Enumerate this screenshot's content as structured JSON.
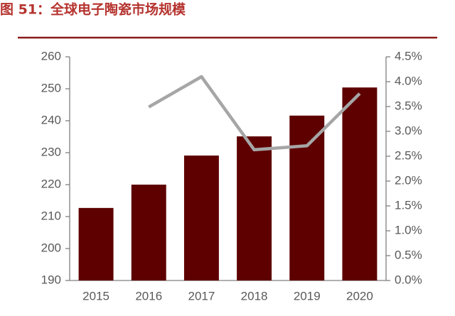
{
  "chart_data": {
    "type": "bar-line",
    "title": "图 51：全球电子陶瓷市场规模",
    "categories": [
      "2015",
      "2016",
      "2017",
      "2018",
      "2019",
      "2020"
    ],
    "series": [
      {
        "type": "bar",
        "color": "#5e0000",
        "values": [
          212.7,
          220,
          229.1,
          235.1,
          241.6,
          250.4
        ]
      },
      {
        "type": "line",
        "axis": "y2",
        "color": "#a6a6a6",
        "values": [
          null,
          3.49,
          4.1,
          2.63,
          2.71,
          3.76
        ]
      }
    ],
    "ylim": [
      190,
      260
    ],
    "yticks": [
      190,
      200,
      210,
      220,
      230,
      240,
      250,
      260
    ],
    "y2lim": [
      0,
      4.5
    ],
    "y2ticks": [
      {
        "value": 0,
        "label": "0.0%"
      },
      {
        "value": 0.5,
        "label": "0.5%"
      },
      {
        "value": 1,
        "label": "1.0%"
      },
      {
        "value": 1.5,
        "label": "1.5%"
      },
      {
        "value": 2,
        "label": "2.0%"
      },
      {
        "value": 2.5,
        "label": "2.5%"
      },
      {
        "value": 3,
        "label": "3.0%"
      },
      {
        "value": 3.5,
        "label": "3.5%"
      },
      {
        "value": 4,
        "label": "4.0%"
      },
      {
        "value": 4.5,
        "label": "4.5%"
      }
    ]
  }
}
